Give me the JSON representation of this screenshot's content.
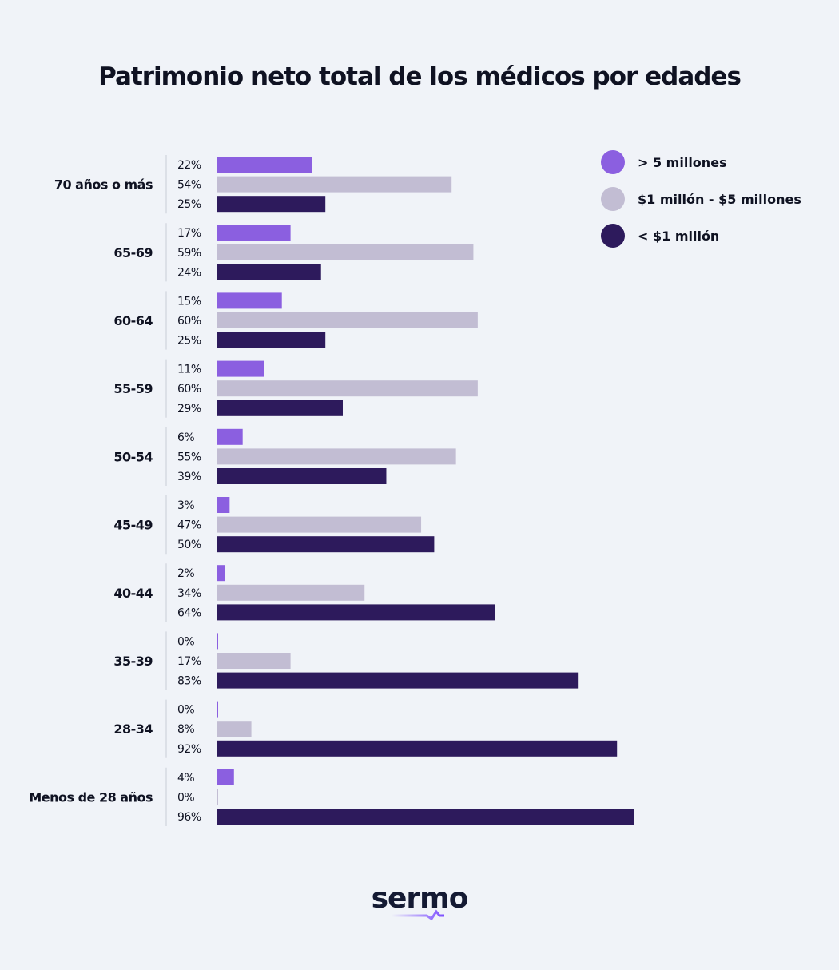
{
  "chart_data": {
    "type": "bar",
    "orientation": "horizontal",
    "title": "Patrimonio neto total de los médicos por edades",
    "categories": [
      "70 años o más",
      "65-69",
      "60-64",
      "55-59",
      "50-54",
      "45-49",
      "40-44",
      "35-39",
      "28-34",
      "Menos de 28 años"
    ],
    "series": [
      {
        "name": "> 5 millones",
        "color": "#8b5fe0",
        "values": [
          22,
          17,
          15,
          11,
          6,
          3,
          2,
          0,
          0,
          4
        ]
      },
      {
        "name": "$1 millón - $5 millones",
        "color": "#c2bdd3",
        "values": [
          54,
          59,
          60,
          60,
          55,
          47,
          34,
          17,
          8,
          0
        ]
      },
      {
        "name": "< $1 millón",
        "color": "#2d1a5c",
        "values": [
          25,
          24,
          25,
          29,
          39,
          50,
          64,
          83,
          92,
          96
        ]
      }
    ],
    "value_suffix": "%",
    "legend_position": "top-right",
    "grid": false
  },
  "brand": {
    "logo": "sermo"
  }
}
